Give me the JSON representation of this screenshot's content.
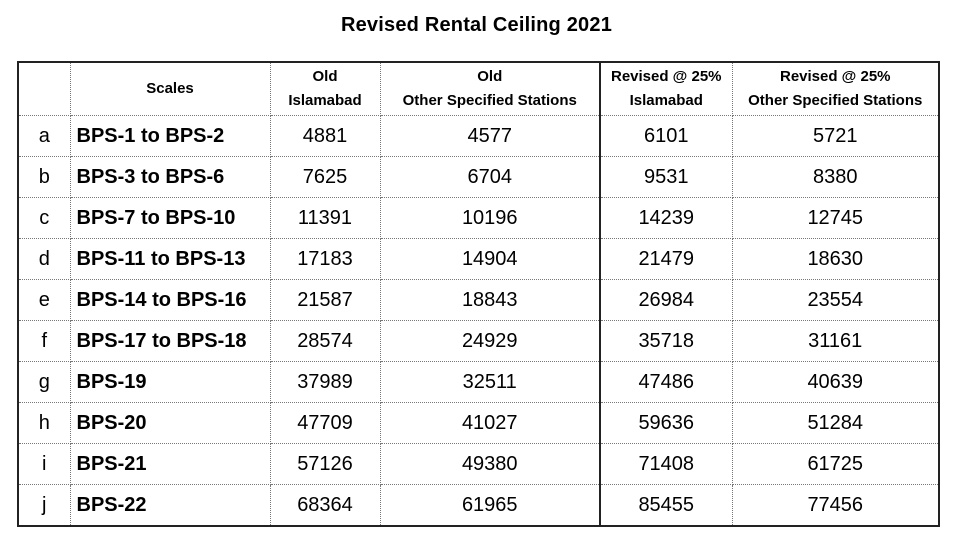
{
  "title": "Revised Rental Ceiling 2021",
  "headers": {
    "index": "",
    "scales": "Scales",
    "old_islamabad": [
      "Old",
      "Islamabad"
    ],
    "old_other": [
      "Old",
      "Other Specified Stations"
    ],
    "revised_islamabad": [
      "Revised @ 25%",
      "Islamabad"
    ],
    "revised_other": [
      "Revised @ 25%",
      "Other Specified Stations"
    ]
  },
  "rows": [
    {
      "idx": "a",
      "scale": "BPS-1 to BPS-2",
      "old_isb": "4881",
      "old_other": "4577",
      "rev_isb": "6101",
      "rev_other": "5721"
    },
    {
      "idx": "b",
      "scale": "BPS-3 to BPS-6",
      "old_isb": "7625",
      "old_other": "6704",
      "rev_isb": "9531",
      "rev_other": "8380"
    },
    {
      "idx": "c",
      "scale": "BPS-7 to BPS-10",
      "old_isb": "11391",
      "old_other": "10196",
      "rev_isb": "14239",
      "rev_other": "12745"
    },
    {
      "idx": "d",
      "scale": "BPS-11 to BPS-13",
      "old_isb": "17183",
      "old_other": "14904",
      "rev_isb": "21479",
      "rev_other": "18630"
    },
    {
      "idx": "e",
      "scale": "BPS-14 to BPS-16",
      "old_isb": "21587",
      "old_other": "18843",
      "rev_isb": "26984",
      "rev_other": "23554"
    },
    {
      "idx": "f",
      "scale": "BPS-17 to BPS-18",
      "old_isb": "28574",
      "old_other": "24929",
      "rev_isb": "35718",
      "rev_other": "31161"
    },
    {
      "idx": "g",
      "scale": "BPS-19",
      "old_isb": "37989",
      "old_other": "32511",
      "rev_isb": "47486",
      "rev_other": "40639"
    },
    {
      "idx": "h",
      "scale": "BPS-20",
      "old_isb": "47709",
      "old_other": "41027",
      "rev_isb": "59636",
      "rev_other": "51284"
    },
    {
      "idx": "i",
      "scale": "BPS-21",
      "old_isb": "57126",
      "old_other": "49380",
      "rev_isb": "71408",
      "rev_other": "61725"
    },
    {
      "idx": "j",
      "scale": "BPS-22",
      "old_isb": "68364",
      "old_other": "61965",
      "rev_isb": "85455",
      "rev_other": "77456"
    }
  ]
}
